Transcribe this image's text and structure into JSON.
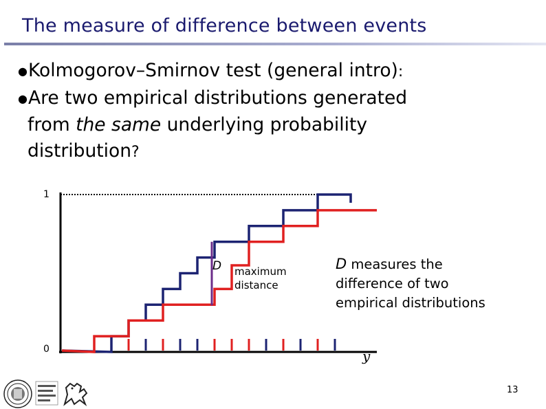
{
  "slide": {
    "title": "The measure of difference between events",
    "bullet1": "Kolmogorov–Smirnov test (general intro)",
    "bullet1_colon": ":",
    "bullet2_a": "Are two empirical distributions generated",
    "bullet2_b": "from ",
    "bullet2_em": "the same",
    "bullet2_c": " underlying probability",
    "bullet2_d": "distribution",
    "bullet2_q": "?",
    "bullet_symbol": "●",
    "page_number": "13"
  },
  "figure": {
    "y_tick_top": "1",
    "y_tick_bottom": "0",
    "x_label": "y",
    "d_label": "D",
    "max_label_1": "maximum",
    "max_label_2": "distance",
    "side_d": "D",
    "side_1": " measures the",
    "side_2": "difference of two",
    "side_3": "empirical distributions"
  },
  "chart_data": {
    "type": "line",
    "xlabel": "y",
    "ylim": [
      0,
      1
    ],
    "y_ticks": [
      "0",
      "1"
    ],
    "series": [
      {
        "color": "#1c2372",
        "x": [
          0,
          2,
          3,
          4,
          5,
          6,
          7,
          8,
          10,
          11,
          12,
          13,
          14,
          15
        ],
        "y": [
          0,
          0.1,
          0.2,
          0.3,
          0.4,
          0.5,
          0.6,
          0.7,
          0.8,
          0.8,
          0.9,
          0.9,
          1.0,
          1.0
        ]
      },
      {
        "color": "#e02020",
        "x": [
          0,
          1,
          3,
          5,
          8,
          9,
          10,
          12,
          14
        ],
        "y": [
          0,
          0.1,
          0.2,
          0.3,
          0.4,
          0.55,
          0.7,
          0.8,
          0.9
        ]
      }
    ],
    "max_distance_at_x": 8,
    "colors": {
      "sample_a": "#1c2372",
      "sample_b": "#e02020",
      "max_distance": "#6b2d8a"
    }
  }
}
